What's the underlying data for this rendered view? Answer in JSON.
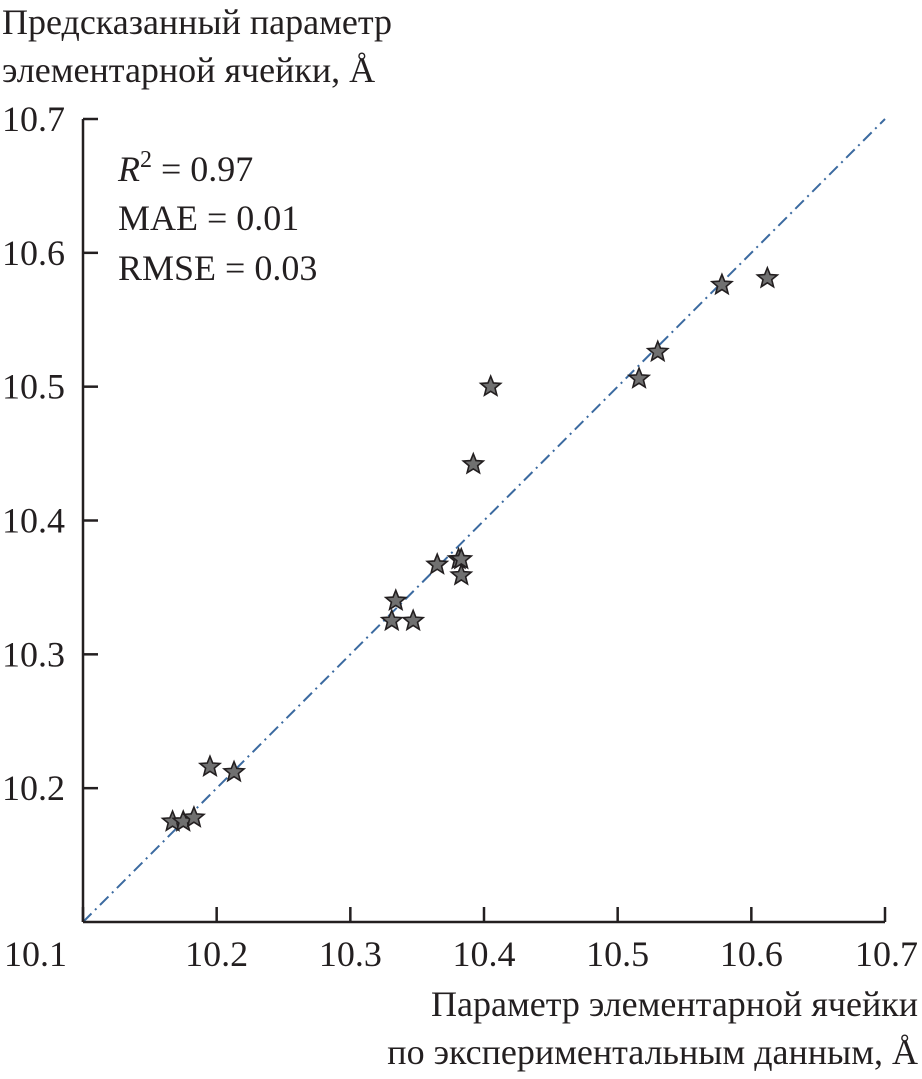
{
  "chart_data": {
    "type": "scatter",
    "ylabel_lines": [
      "Предсказанный параметр",
      "элементарной ячейки, Å"
    ],
    "xlabel_lines": [
      "Параметр элементарной ячейки",
      "по экспериментальным данным, Å"
    ],
    "xlim": [
      10.1,
      10.7
    ],
    "ylim": [
      10.1,
      10.7
    ],
    "xticks": [
      "10.1",
      "10.2",
      "10.3",
      "10.4",
      "10.5",
      "10.6",
      "10.7"
    ],
    "yticks": [
      "10.2",
      "10.3",
      "10.4",
      "10.5",
      "10.6",
      "10.7"
    ],
    "stats": {
      "r2_symbol": "R",
      "r2_sup": "2",
      "r2_value": " = 0.97",
      "mae": "MAE = 0.01",
      "rmse": "RMSE = 0.03"
    },
    "reference_line": {
      "style": "dash-dot",
      "from": [
        10.1,
        10.1
      ],
      "to": [
        10.7,
        10.7
      ],
      "color": "#3b6aa0"
    },
    "marker": {
      "shape": "star",
      "fill": "#707070",
      "stroke": "#231f20"
    },
    "points": [
      {
        "x": 10.167,
        "y": 10.175
      },
      {
        "x": 10.175,
        "y": 10.175
      },
      {
        "x": 10.183,
        "y": 10.178
      },
      {
        "x": 10.195,
        "y": 10.216
      },
      {
        "x": 10.213,
        "y": 10.212
      },
      {
        "x": 10.331,
        "y": 10.325
      },
      {
        "x": 10.334,
        "y": 10.34
      },
      {
        "x": 10.347,
        "y": 10.325
      },
      {
        "x": 10.365,
        "y": 10.367
      },
      {
        "x": 10.381,
        "y": 10.371
      },
      {
        "x": 10.383,
        "y": 10.371
      },
      {
        "x": 10.383,
        "y": 10.359
      },
      {
        "x": 10.392,
        "y": 10.442
      },
      {
        "x": 10.405,
        "y": 10.5
      },
      {
        "x": 10.516,
        "y": 10.506
      },
      {
        "x": 10.53,
        "y": 10.526
      },
      {
        "x": 10.578,
        "y": 10.576
      },
      {
        "x": 10.612,
        "y": 10.581
      }
    ]
  }
}
